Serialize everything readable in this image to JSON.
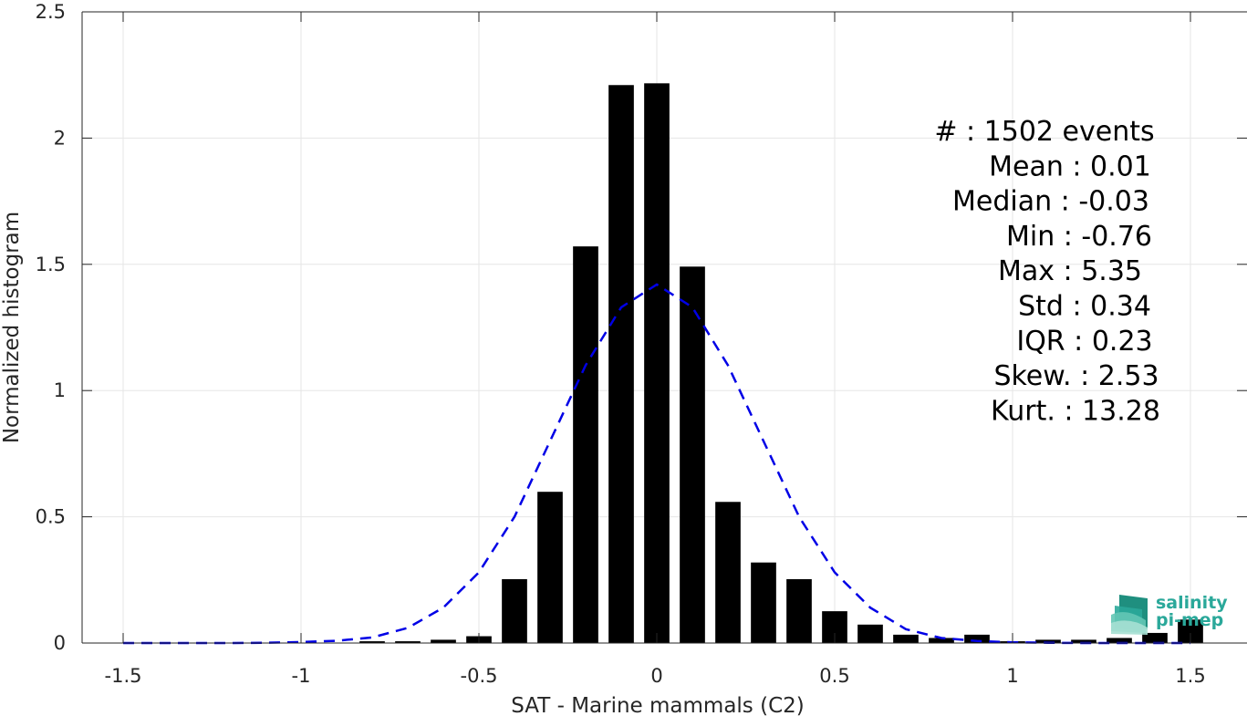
{
  "chart_data": {
    "type": "bar",
    "title": "",
    "xlabel": "SAT - Marine mammals (C2)",
    "ylabel": "Normalized histogram",
    "xlim": [
      -1.6,
      1.6
    ],
    "ylim": [
      0,
      2.5
    ],
    "xticks": [
      -1.5,
      -1,
      -0.5,
      0,
      0.5,
      1,
      1.5
    ],
    "xtick_labels": [
      "-1.5",
      "-1",
      "-0.5",
      "0",
      "0.5",
      "1",
      "1.5"
    ],
    "yticks": [
      0,
      0.5,
      1,
      1.5,
      2,
      2.5
    ],
    "ytick_labels": [
      "0",
      "0.5",
      "1",
      "1.5",
      "2",
      "2.5"
    ],
    "grid": true,
    "bar_color": "#000000",
    "bin_width": 0.1,
    "series": [
      {
        "type": "bar",
        "x": [
          -1.5,
          -1.4,
          -1.3,
          -1.2,
          -1.1,
          -1.0,
          -0.9,
          -0.8,
          -0.7,
          -0.6,
          -0.5,
          -0.4,
          -0.3,
          -0.2,
          -0.1,
          0.0,
          0.1,
          0.2,
          0.3,
          0.4,
          0.5,
          0.6,
          0.7,
          0.8,
          0.9,
          1.0,
          1.1,
          1.2,
          1.3,
          1.4,
          1.5
        ],
        "values": [
          0,
          0,
          0,
          0,
          0,
          0,
          0,
          0.007,
          0.007,
          0.013,
          0.027,
          0.253,
          0.599,
          1.571,
          2.21,
          2.217,
          1.491,
          0.559,
          0.319,
          0.253,
          0.126,
          0.073,
          0.033,
          0.02,
          0.033,
          0.007,
          0.013,
          0.013,
          0.02,
          0.04,
          0.093
        ]
      },
      {
        "type": "line",
        "style": "dashed",
        "color": "#0000e6",
        "x": [
          -1.5,
          -1.4,
          -1.3,
          -1.2,
          -1.1,
          -1.0,
          -0.9,
          -0.8,
          -0.7,
          -0.6,
          -0.5,
          -0.4,
          -0.3,
          -0.2,
          -0.1,
          0.0,
          0.1,
          0.2,
          0.3,
          0.4,
          0.5,
          0.6,
          0.7,
          0.8,
          0.9,
          1.0,
          1.1,
          1.2,
          1.3,
          1.4,
          1.5
        ],
        "values": [
          0,
          0,
          0,
          0,
          0.001,
          0.004,
          0.009,
          0.022,
          0.06,
          0.14,
          0.28,
          0.5,
          0.8,
          1.1,
          1.33,
          1.42,
          1.33,
          1.1,
          0.8,
          0.5,
          0.28,
          0.14,
          0.055,
          0.02,
          0.008,
          0.003,
          0.001,
          0,
          0,
          0,
          0
        ]
      }
    ],
    "stats": [
      {
        "label": "#  : 1502 events"
      },
      {
        "label": "Mean : 0.01"
      },
      {
        "label": "Median : -0.03"
      },
      {
        "label": "Min : -0.76"
      },
      {
        "label": "Max : 5.35"
      },
      {
        "label": "Std : 0.34"
      },
      {
        "label": "IQR : 0.23"
      },
      {
        "label": "Skew. : 2.53"
      },
      {
        "label": "Kurt. : 13.28"
      }
    ]
  },
  "logo": {
    "line1": "salinity",
    "line2": "pi-mep",
    "color": "#2aa89a"
  }
}
